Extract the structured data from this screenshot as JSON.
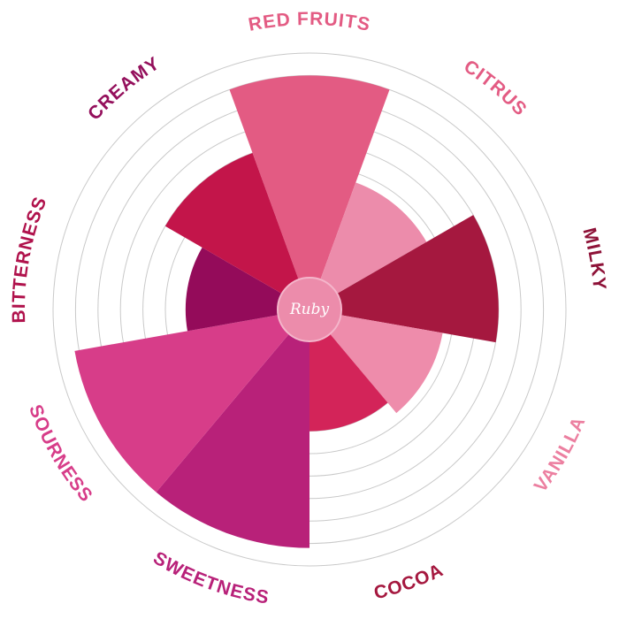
{
  "chart_data": {
    "type": "polar-area",
    "title": "",
    "center_label": "Ruby",
    "rlim": [
      0,
      10
    ],
    "grid_rings": 10,
    "categories": [
      "RED FRUITS",
      "CITRUS",
      "MILKY",
      "VANILLA",
      "COCOA",
      "SWEETNESS",
      "SOURNESS",
      "BITTERNESS",
      "CREAMY"
    ],
    "values": [
      9.0,
      4.6,
      7.0,
      4.6,
      4.0,
      9.2,
      9.2,
      4.1,
      6.0
    ],
    "colors": [
      "#e35b83",
      "#ec8cab",
      "#a5183f",
      "#ee8cab",
      "#d32459",
      "#b82179",
      "#d73d89",
      "#940b5a",
      "#c3154a"
    ],
    "label_colors": [
      "#e35b83",
      "#e35b83",
      "#8e1238",
      "#ec7fa0",
      "#a5183f",
      "#b82179",
      "#d73d89",
      "#b0124c",
      "#94105c"
    ],
    "grid": true,
    "legend": "none"
  }
}
